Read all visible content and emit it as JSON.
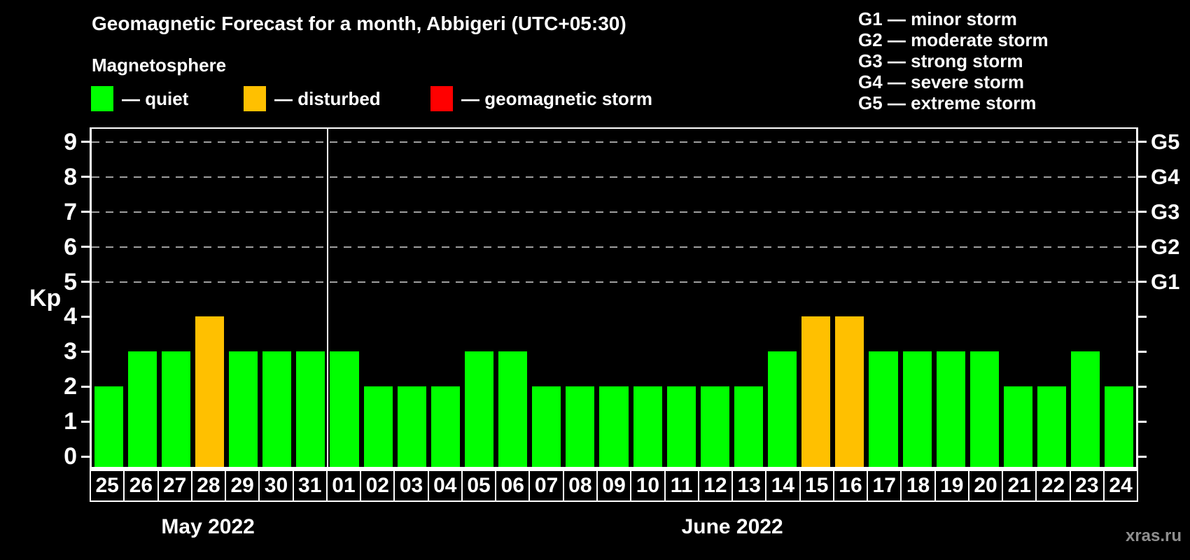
{
  "title": "Geomagnetic Forecast for a month, Abbigeri (UTC+05:30)",
  "subtitle": "Magnetosphere",
  "legend": {
    "items": [
      {
        "status": "quiet",
        "label": "— quiet",
        "color": "#00ff00"
      },
      {
        "status": "disturbed",
        "label": "— disturbed",
        "color": "#ffc000"
      },
      {
        "status": "storm",
        "label": "— geomagnetic storm",
        "color": "#ff0000"
      }
    ]
  },
  "g_scale_legend": [
    "G1 — minor storm",
    "G2 — moderate storm",
    "G3 — strong storm",
    "G4 — severe storm",
    "G5 — extreme storm"
  ],
  "watermark": "xras.ru",
  "chart_data": {
    "type": "bar",
    "ylabel": "Kp",
    "ylim": [
      0,
      9
    ],
    "yticks": [
      0,
      1,
      2,
      3,
      4,
      5,
      6,
      7,
      8,
      9
    ],
    "grid_kp": [
      5,
      6,
      7,
      8,
      9
    ],
    "grid_on": true,
    "right_labels": [
      {
        "text": "G1",
        "kp": 5
      },
      {
        "text": "G2",
        "kp": 6
      },
      {
        "text": "G3",
        "kp": 7
      },
      {
        "text": "G4",
        "kp": 8
      },
      {
        "text": "G5",
        "kp": 9
      }
    ],
    "months": [
      {
        "label": "May 2022",
        "bars": [
          {
            "day": "25",
            "kp": 2,
            "status": "quiet"
          },
          {
            "day": "26",
            "kp": 3,
            "status": "quiet"
          },
          {
            "day": "27",
            "kp": 3,
            "status": "quiet"
          },
          {
            "day": "28",
            "kp": 4,
            "status": "disturbed"
          },
          {
            "day": "29",
            "kp": 3,
            "status": "quiet"
          },
          {
            "day": "30",
            "kp": 3,
            "status": "quiet"
          },
          {
            "day": "31",
            "kp": 3,
            "status": "quiet"
          }
        ]
      },
      {
        "label": "June 2022",
        "bars": [
          {
            "day": "01",
            "kp": 3,
            "status": "quiet"
          },
          {
            "day": "02",
            "kp": 2,
            "status": "quiet"
          },
          {
            "day": "03",
            "kp": 2,
            "status": "quiet"
          },
          {
            "day": "04",
            "kp": 2,
            "status": "quiet"
          },
          {
            "day": "05",
            "kp": 3,
            "status": "quiet"
          },
          {
            "day": "06",
            "kp": 3,
            "status": "quiet"
          },
          {
            "day": "07",
            "kp": 2,
            "status": "quiet"
          },
          {
            "day": "08",
            "kp": 2,
            "status": "quiet"
          },
          {
            "day": "09",
            "kp": 2,
            "status": "quiet"
          },
          {
            "day": "10",
            "kp": 2,
            "status": "quiet"
          },
          {
            "day": "11",
            "kp": 2,
            "status": "quiet"
          },
          {
            "day": "12",
            "kp": 2,
            "status": "quiet"
          },
          {
            "day": "13",
            "kp": 2,
            "status": "quiet"
          },
          {
            "day": "14",
            "kp": 3,
            "status": "quiet"
          },
          {
            "day": "15",
            "kp": 4,
            "status": "disturbed"
          },
          {
            "day": "16",
            "kp": 4,
            "status": "disturbed"
          },
          {
            "day": "17",
            "kp": 3,
            "status": "quiet"
          },
          {
            "day": "18",
            "kp": 3,
            "status": "quiet"
          },
          {
            "day": "19",
            "kp": 3,
            "status": "quiet"
          },
          {
            "day": "20",
            "kp": 3,
            "status": "quiet"
          },
          {
            "day": "21",
            "kp": 2,
            "status": "quiet"
          },
          {
            "day": "22",
            "kp": 2,
            "status": "quiet"
          },
          {
            "day": "23",
            "kp": 3,
            "status": "quiet"
          },
          {
            "day": "24",
            "kp": 2,
            "status": "quiet"
          }
        ]
      }
    ]
  }
}
